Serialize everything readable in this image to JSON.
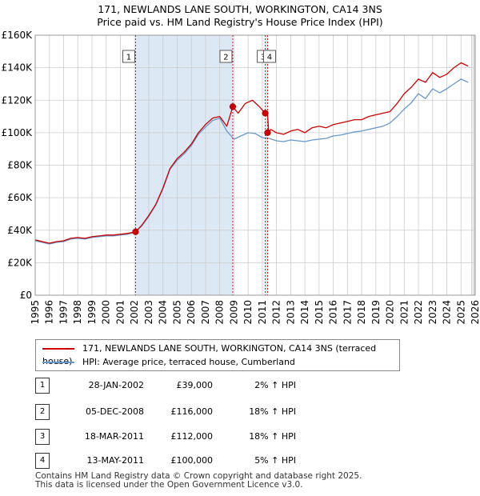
{
  "title": "171, NEWLANDS LANE SOUTH, WORKINGTON, CA14 3NS",
  "subtitle": "Price paid vs. HM Land Registry's House Price Index (HPI)",
  "colors": {
    "property": "#cc0000",
    "hpi": "#6699cc",
    "shade": "#dde8f5",
    "grid": "#cccccc"
  },
  "chart_data": {
    "type": "line",
    "xlim": [
      1995,
      2026
    ],
    "ylim": [
      0,
      160000
    ],
    "yticks": [
      0,
      20000,
      40000,
      60000,
      80000,
      100000,
      120000,
      140000,
      160000
    ],
    "ytick_labels": [
      "£0",
      "£20K",
      "£40K",
      "£60K",
      "£80K",
      "£100K",
      "£120K",
      "£140K",
      "£160K"
    ],
    "xticks": [
      1995,
      1996,
      1997,
      1998,
      1999,
      2000,
      2001,
      2002,
      2003,
      2004,
      2005,
      2006,
      2007,
      2008,
      2009,
      2010,
      2011,
      2012,
      2013,
      2014,
      2015,
      2016,
      2017,
      2018,
      2019,
      2020,
      2021,
      2022,
      2023,
      2024,
      2025,
      2026
    ],
    "series": [
      {
        "name": "171, NEWLANDS LANE SOUTH, WORKINGTON, CA14 3NS (terraced house)",
        "color": "#cc0000",
        "x": [
          1995,
          1995.5,
          1996,
          1996.5,
          1997,
          1997.5,
          1998,
          1998.5,
          1999,
          1999.5,
          2000,
          2000.5,
          2001,
          2001.5,
          2002.07,
          2002.5,
          2003,
          2003.5,
          2004,
          2004.5,
          2005,
          2005.5,
          2006,
          2006.5,
          2007,
          2007.5,
          2008,
          2008.5,
          2008.92,
          2009.3,
          2009.8,
          2010.3,
          2010.8,
          2011.2,
          2011.37,
          2011.45,
          2011.6,
          2012,
          2012.5,
          2013,
          2013.5,
          2014,
          2014.5,
          2015,
          2015.5,
          2016,
          2016.5,
          2017,
          2017.5,
          2018,
          2018.5,
          2019,
          2019.5,
          2020,
          2020.5,
          2021,
          2021.5,
          2022,
          2022.5,
          2023,
          2023.5,
          2024,
          2024.5,
          2025,
          2025.5
        ],
        "y": [
          34000,
          33000,
          32000,
          33000,
          33500,
          35000,
          35500,
          35000,
          36000,
          36500,
          37000,
          37000,
          37500,
          38000,
          39000,
          43000,
          49000,
          56000,
          66000,
          78000,
          84000,
          88000,
          93000,
          100000,
          105000,
          109000,
          110000,
          104000,
          116000,
          112000,
          118000,
          120000,
          116000,
          112000,
          112000,
          100000,
          102000,
          100000,
          99000,
          101000,
          102000,
          100000,
          103000,
          104000,
          103000,
          105000,
          106000,
          107000,
          108000,
          108000,
          110000,
          111000,
          112000,
          113000,
          118000,
          124000,
          128000,
          133000,
          131000,
          137000,
          134000,
          136000,
          140000,
          143000,
          141000
        ]
      },
      {
        "name": "HPI: Average price, terraced house, Cumberland",
        "color": "#6699cc",
        "x": [
          1995,
          1995.5,
          1996,
          1996.5,
          1997,
          1997.5,
          1998,
          1998.5,
          1999,
          1999.5,
          2000,
          2000.5,
          2001,
          2001.5,
          2002,
          2002.5,
          2003,
          2003.5,
          2004,
          2004.5,
          2005,
          2005.5,
          2006,
          2006.5,
          2007,
          2007.5,
          2008,
          2008.5,
          2009,
          2009.5,
          2010,
          2010.5,
          2011,
          2011.5,
          2012,
          2012.5,
          2013,
          2013.5,
          2014,
          2014.5,
          2015,
          2015.5,
          2016,
          2016.5,
          2017,
          2017.5,
          2018,
          2018.5,
          2019,
          2019.5,
          2020,
          2020.5,
          2021,
          2021.5,
          2022,
          2022.5,
          2023,
          2023.5,
          2024,
          2024.5,
          2025,
          2025.5
        ],
        "y": [
          33500,
          32500,
          31500,
          32500,
          33000,
          34500,
          35000,
          34500,
          35500,
          36000,
          36500,
          36500,
          37000,
          37500,
          38500,
          42500,
          48500,
          55500,
          65500,
          77500,
          83000,
          87000,
          92000,
          99000,
          103500,
          107500,
          109000,
          101000,
          96000,
          98000,
          100000,
          99500,
          97000,
          96500,
          95000,
          94500,
          95500,
          95000,
          94500,
          95500,
          96000,
          96500,
          98000,
          98500,
          99500,
          100500,
          101000,
          102000,
          103000,
          104000,
          106000,
          110000,
          114500,
          118500,
          124000,
          121000,
          127000,
          124500,
          127000,
          130000,
          133000,
          131000
        ]
      }
    ],
    "annotations": [
      {
        "id": "1",
        "x": 2002.07,
        "y": 39000
      },
      {
        "id": "2",
        "x": 2008.92,
        "y": 116000
      },
      {
        "id": "3",
        "x": 2011.21,
        "y": 112000
      },
      {
        "id": "4",
        "x": 2011.37,
        "y": 100000
      }
    ]
  },
  "legend": {
    "property_label": "171, NEWLANDS LANE SOUTH, WORKINGTON, CA14 3NS (terraced house)",
    "hpi_label": "HPI: Average price, terraced house, Cumberland"
  },
  "sales": [
    {
      "num": "1",
      "date": "28-JAN-2002",
      "price": "£39,000",
      "hpi": "2% ↑ HPI"
    },
    {
      "num": "2",
      "date": "05-DEC-2008",
      "price": "£116,000",
      "hpi": "18% ↑ HPI"
    },
    {
      "num": "3",
      "date": "18-MAR-2011",
      "price": "£112,000",
      "hpi": "18% ↑ HPI"
    },
    {
      "num": "4",
      "date": "13-MAY-2011",
      "price": "£100,000",
      "hpi": "5% ↑ HPI"
    }
  ],
  "footer": {
    "line1": "Contains HM Land Registry data © Crown copyright and database right 2025.",
    "line2": "This data is licensed under the Open Government Licence v3.0."
  }
}
